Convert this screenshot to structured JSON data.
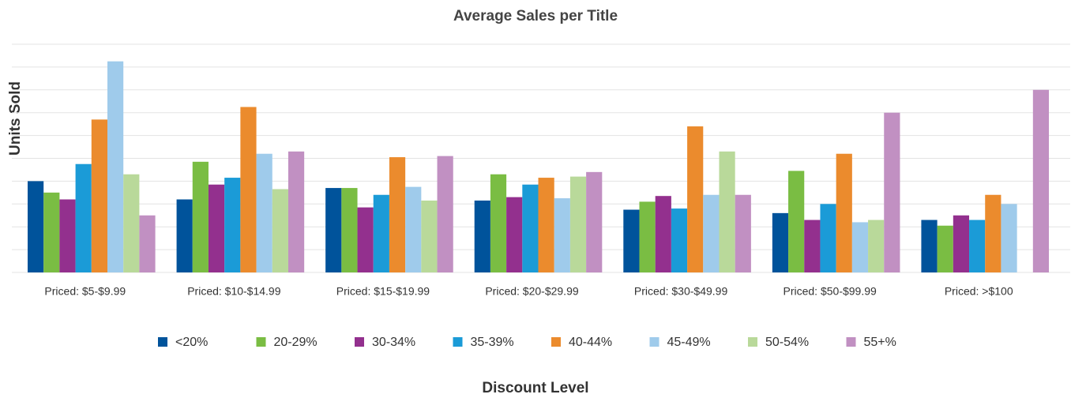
{
  "chart_data": {
    "type": "bar",
    "title": "Average Sales per Title",
    "y_label": "Units Sold",
    "x_label": "Discount Level",
    "categories": [
      "Priced: $5-$9.99",
      "Priced: $10-$14.99",
      "Priced: $15-$19.99",
      "Priced: $20-$29.99",
      "Priced: $30-$49.99",
      "Priced: $50-$99.99",
      "Priced: >$100"
    ],
    "series": [
      {
        "name": "<20%",
        "color": "#00539b",
        "values": [
          4.0,
          3.2,
          3.7,
          3.15,
          2.75,
          2.6,
          2.3
        ]
      },
      {
        "name": "20-29%",
        "color": "#7abd43",
        "values": [
          3.5,
          4.85,
          3.7,
          4.3,
          3.1,
          4.45,
          2.05
        ]
      },
      {
        "name": "30-34%",
        "color": "#93308e",
        "values": [
          3.2,
          3.85,
          2.85,
          3.3,
          3.35,
          2.3,
          2.5
        ]
      },
      {
        "name": "35-39%",
        "color": "#1b9bd7",
        "values": [
          4.75,
          4.15,
          3.4,
          3.85,
          2.8,
          3.0,
          2.3
        ]
      },
      {
        "name": "40-44%",
        "color": "#eb8b2d",
        "values": [
          6.7,
          7.25,
          5.05,
          4.15,
          6.4,
          5.2,
          3.4
        ]
      },
      {
        "name": "45-49%",
        "color": "#9fcbeb",
        "values": [
          9.25,
          5.2,
          3.75,
          3.25,
          3.4,
          2.2,
          3.0
        ]
      },
      {
        "name": "50-54%",
        "color": "#b9d99a",
        "values": [
          4.3,
          3.65,
          3.15,
          4.2,
          5.3,
          2.3,
          null
        ]
      },
      {
        "name": "55+%",
        "color": "#c190c2",
        "values": [
          2.5,
          5.3,
          5.1,
          4.4,
          3.4,
          7.0,
          8.0
        ]
      }
    ],
    "ylim": [
      0,
      10
    ],
    "yticks": [
      0,
      1,
      2,
      3,
      4,
      5,
      6,
      7,
      8,
      9,
      10
    ],
    "grid": true,
    "legend": "bottom"
  }
}
